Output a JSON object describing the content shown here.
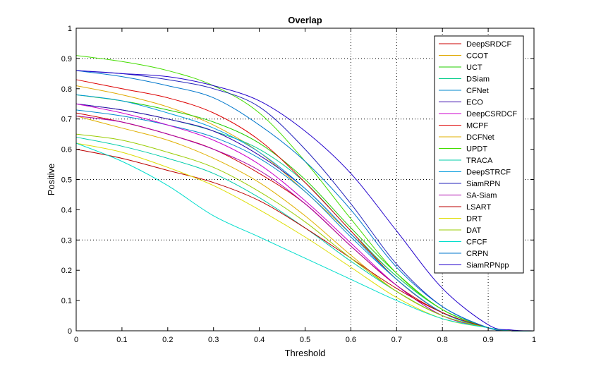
{
  "chart_data": {
    "type": "line",
    "title": "Overlap",
    "xlabel": "Threshold",
    "ylabel": "Positive",
    "xlim": [
      0,
      1
    ],
    "ylim": [
      0,
      1
    ],
    "xticks": [
      "0",
      "0.1",
      "0.2",
      "0.3",
      "0.4",
      "0.5",
      "0.6",
      "0.7",
      "0.8",
      "0.9",
      "1"
    ],
    "yticks": [
      "0",
      "0.1",
      "0.2",
      "0.3",
      "0.4",
      "0.5",
      "0.6",
      "0.7",
      "0.8",
      "0.9",
      "1"
    ],
    "grid_x": [
      0.6,
      0.7,
      0.8,
      0.9
    ],
    "grid_y": [
      0.3,
      0.5,
      0.7,
      0.9
    ],
    "legend_position": "top-right",
    "x": [
      0,
      0.1,
      0.2,
      0.3,
      0.4,
      0.5,
      0.6,
      0.7,
      0.8,
      0.9,
      0.95,
      1.0
    ],
    "series": [
      {
        "name": "DeepSRDCF",
        "color": "#cc0000",
        "values": [
          0.72,
          0.69,
          0.65,
          0.6,
          0.52,
          0.42,
          0.28,
          0.15,
          0.06,
          0.01,
          0.0,
          0.0
        ]
      },
      {
        "name": "CCOT",
        "color": "#e0a800",
        "values": [
          0.81,
          0.78,
          0.74,
          0.68,
          0.59,
          0.46,
          0.32,
          0.18,
          0.07,
          0.01,
          0.0,
          0.0
        ]
      },
      {
        "name": "UCT",
        "color": "#22cc00",
        "values": [
          0.78,
          0.76,
          0.73,
          0.69,
          0.62,
          0.5,
          0.34,
          0.19,
          0.07,
          0.01,
          0.0,
          0.0
        ]
      },
      {
        "name": "DSiam",
        "color": "#00cc88",
        "values": [
          0.75,
          0.73,
          0.7,
          0.66,
          0.6,
          0.49,
          0.33,
          0.18,
          0.07,
          0.01,
          0.0,
          0.0
        ]
      },
      {
        "name": "CFNet",
        "color": "#0088cc",
        "values": [
          0.73,
          0.71,
          0.68,
          0.64,
          0.57,
          0.46,
          0.31,
          0.17,
          0.06,
          0.01,
          0.0,
          0.0
        ]
      },
      {
        "name": "ECO",
        "color": "#3300aa",
        "values": [
          0.75,
          0.73,
          0.7,
          0.66,
          0.58,
          0.47,
          0.32,
          0.17,
          0.06,
          0.01,
          0.0,
          0.0
        ]
      },
      {
        "name": "DeepCSRDCF",
        "color": "#cc00cc",
        "values": [
          0.75,
          0.72,
          0.68,
          0.63,
          0.55,
          0.43,
          0.29,
          0.15,
          0.05,
          0.01,
          0.0,
          0.0
        ]
      },
      {
        "name": "MCPF",
        "color": "#dd0000",
        "values": [
          0.83,
          0.8,
          0.77,
          0.72,
          0.63,
          0.49,
          0.33,
          0.17,
          0.06,
          0.01,
          0.0,
          0.0
        ]
      },
      {
        "name": "DCFNet",
        "color": "#e0b000",
        "values": [
          0.71,
          0.67,
          0.63,
          0.57,
          0.49,
          0.38,
          0.25,
          0.13,
          0.05,
          0.01,
          0.0,
          0.0
        ]
      },
      {
        "name": "UPDT",
        "color": "#44dd00",
        "values": [
          0.91,
          0.89,
          0.86,
          0.81,
          0.72,
          0.56,
          0.37,
          0.19,
          0.07,
          0.01,
          0.0,
          0.0
        ]
      },
      {
        "name": "TRACA",
        "color": "#00ccaa",
        "values": [
          0.64,
          0.61,
          0.57,
          0.52,
          0.44,
          0.34,
          0.23,
          0.13,
          0.05,
          0.01,
          0.0,
          0.0
        ]
      },
      {
        "name": "DeepSTRCF",
        "color": "#0099dd",
        "values": [
          0.78,
          0.76,
          0.72,
          0.67,
          0.59,
          0.47,
          0.32,
          0.17,
          0.06,
          0.01,
          0.0,
          0.0
        ]
      },
      {
        "name": "SiamRPN",
        "color": "#2222bb",
        "values": [
          0.86,
          0.85,
          0.83,
          0.8,
          0.74,
          0.6,
          0.42,
          0.22,
          0.08,
          0.01,
          0.0,
          0.0
        ]
      },
      {
        "name": "SA-Siam",
        "color": "#aa00aa",
        "values": [
          0.71,
          0.69,
          0.65,
          0.6,
          0.53,
          0.42,
          0.28,
          0.15,
          0.05,
          0.01,
          0.0,
          0.0
        ]
      },
      {
        "name": "LSART",
        "color": "#bb0000",
        "values": [
          0.6,
          0.57,
          0.53,
          0.49,
          0.43,
          0.34,
          0.24,
          0.14,
          0.06,
          0.01,
          0.0,
          0.0
        ]
      },
      {
        "name": "DRT",
        "color": "#dddd00",
        "values": [
          0.62,
          0.59,
          0.54,
          0.48,
          0.4,
          0.31,
          0.21,
          0.11,
          0.04,
          0.01,
          0.0,
          0.0
        ]
      },
      {
        "name": "DAT",
        "color": "#99cc00",
        "values": [
          0.65,
          0.63,
          0.59,
          0.54,
          0.46,
          0.36,
          0.24,
          0.13,
          0.05,
          0.01,
          0.0,
          0.0
        ]
      },
      {
        "name": "CFCF",
        "color": "#00ddcc",
        "values": [
          0.62,
          0.56,
          0.48,
          0.38,
          0.31,
          0.24,
          0.17,
          0.1,
          0.04,
          0.01,
          0.0,
          0.0
        ]
      },
      {
        "name": "CRPN",
        "color": "#0077cc",
        "values": [
          0.86,
          0.84,
          0.81,
          0.77,
          0.68,
          0.56,
          0.4,
          0.21,
          0.08,
          0.01,
          0.0,
          0.0
        ]
      },
      {
        "name": "SiamRPNpp",
        "color": "#2200cc",
        "values": [
          0.86,
          0.85,
          0.84,
          0.81,
          0.76,
          0.66,
          0.52,
          0.33,
          0.14,
          0.02,
          0.003,
          0.0
        ]
      }
    ]
  }
}
